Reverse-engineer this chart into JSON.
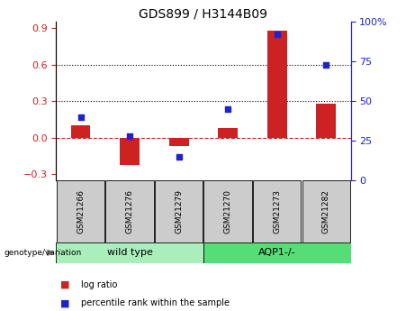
{
  "title": "GDS899 / H3144B09",
  "samples": [
    "GSM21266",
    "GSM21276",
    "GSM21279",
    "GSM21270",
    "GSM21273",
    "GSM21282"
  ],
  "log_ratio": [
    0.1,
    -0.22,
    -0.07,
    0.08,
    0.88,
    0.28
  ],
  "percentile_rank": [
    40,
    28,
    15,
    45,
    92,
    73
  ],
  "groups": [
    {
      "label": "wild type",
      "color": "#aaeebb",
      "n": 3
    },
    {
      "label": "AQP1-/-",
      "color": "#55dd77",
      "n": 3
    }
  ],
  "bar_color": "#cc2222",
  "dot_color": "#2222cc",
  "ylim_left": [
    -0.35,
    0.95
  ],
  "ylim_right": [
    0,
    100
  ],
  "yticks_left": [
    -0.3,
    0.0,
    0.3,
    0.6,
    0.9
  ],
  "yticks_right": [
    0,
    25,
    50,
    75,
    100
  ],
  "hlines": [
    0.3,
    0.6
  ],
  "hline_zero_color": "#cc2222",
  "hline_dotted_color": "#000000",
  "bar_width": 0.4,
  "sample_box_color": "#cccccc",
  "legend_labels": [
    "log ratio",
    "percentile rank within the sample"
  ],
  "genotype_label": "genotype/variation"
}
